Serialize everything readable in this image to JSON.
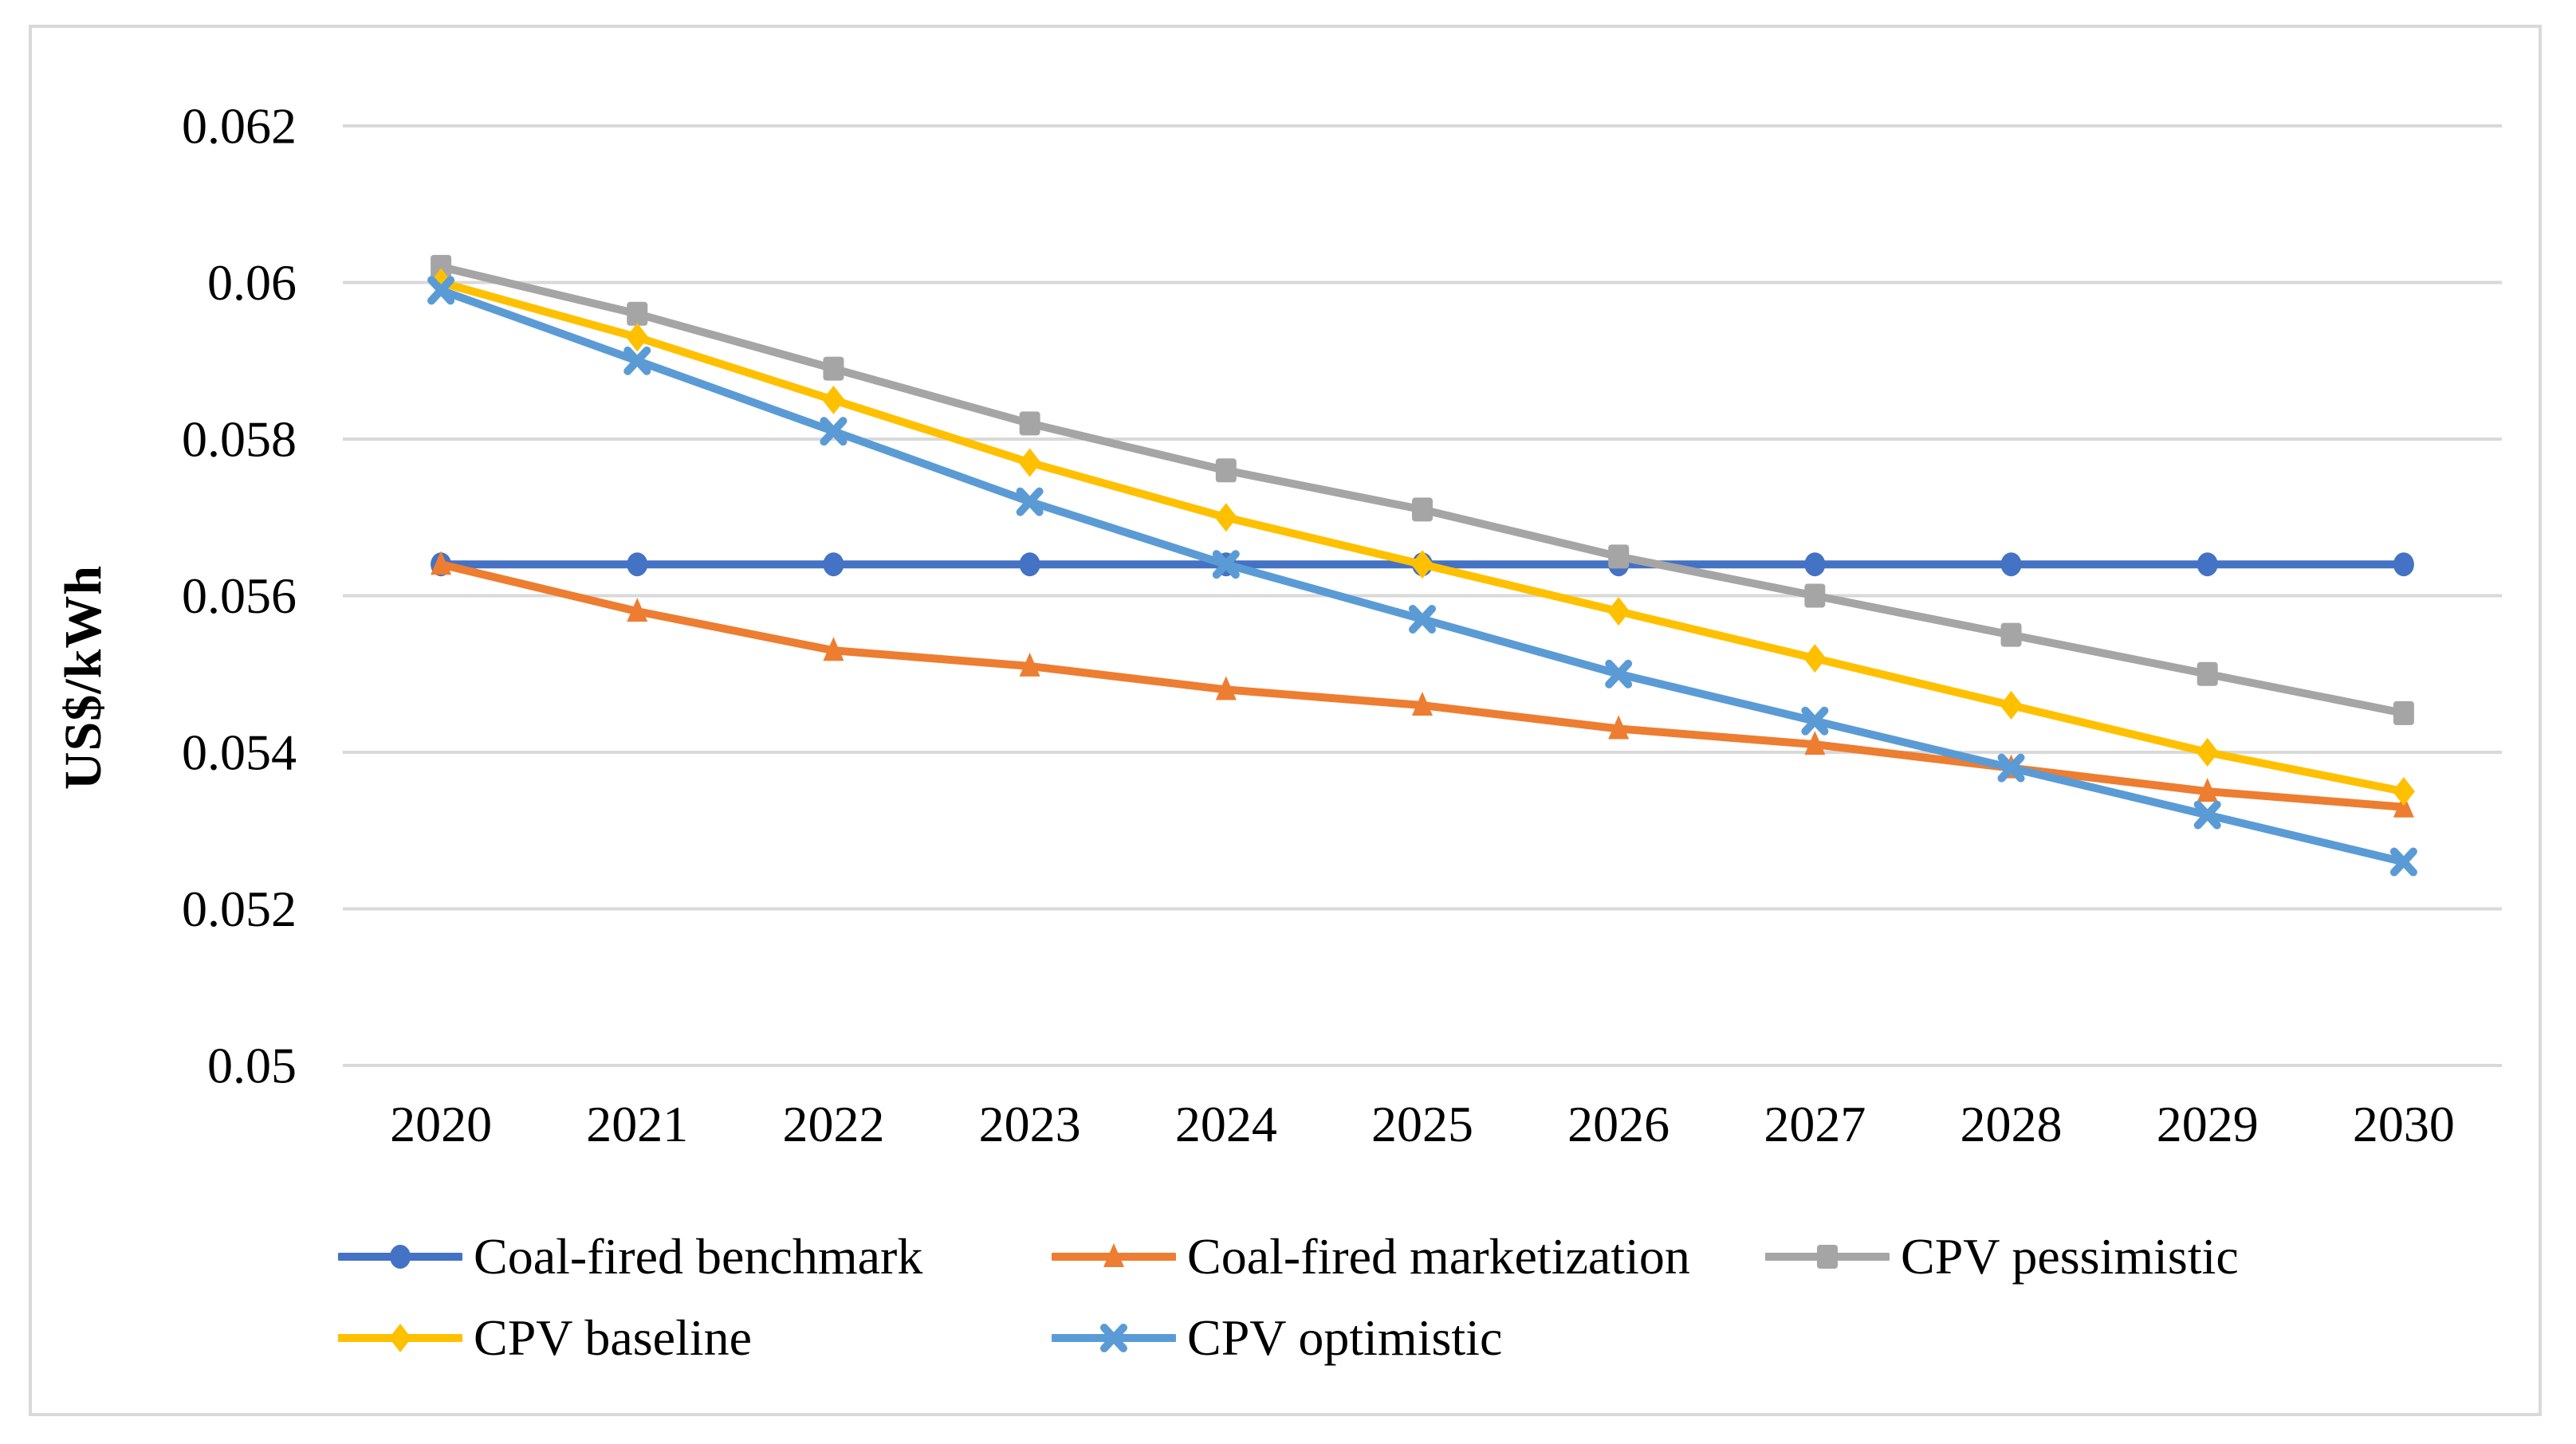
{
  "figure": {
    "background_color": "#ffffff",
    "border_color": "#d9d9d9",
    "gridline_color": "#d9d9d9",
    "text_color": "#000000"
  },
  "chart_data": {
    "type": "line",
    "title": "",
    "xlabel": "",
    "ylabel": "US$/kWh",
    "x": [
      "2020",
      "2021",
      "2022",
      "2023",
      "2024",
      "2025",
      "2026",
      "2027",
      "2028",
      "2029",
      "2030"
    ],
    "ylim": [
      0.05,
      0.062
    ],
    "y_ticks": [
      0.062,
      0.06,
      0.058,
      0.056,
      0.054,
      0.052,
      0.05
    ],
    "y_tick_labels": [
      "0.062",
      "0.06",
      "0.058",
      "0.056",
      "0.054",
      "0.052",
      "0.05"
    ],
    "grid": "horizontal",
    "legend_position": "bottom",
    "series": [
      {
        "id": "coal-fired-benchmark",
        "name": "Coal-fired benchmark",
        "color": "#4472C4",
        "marker": "circle",
        "values": [
          0.0564,
          0.0564,
          0.0564,
          0.0564,
          0.0564,
          0.0564,
          0.0564,
          0.0564,
          0.0564,
          0.0564,
          0.0564
        ]
      },
      {
        "id": "coal-fired-marketization",
        "name": "Coal-fired marketization",
        "color": "#ED7D31",
        "marker": "triangle",
        "values": [
          0.0564,
          0.0558,
          0.0553,
          0.0551,
          0.0548,
          0.0546,
          0.0543,
          0.0541,
          0.0538,
          0.0535,
          0.0533
        ]
      },
      {
        "id": "cpv-pessimistic",
        "name": "CPV pessimistic",
        "color": "#A5A5A5",
        "marker": "square",
        "values": [
          0.0602,
          0.0596,
          0.0589,
          0.0582,
          0.0576,
          0.0571,
          0.0565,
          0.056,
          0.0555,
          0.055,
          0.0545
        ]
      },
      {
        "id": "cpv-baseline",
        "name": "CPV baseline",
        "color": "#FFC000",
        "marker": "diamond",
        "values": [
          0.06,
          0.0593,
          0.0585,
          0.0577,
          0.057,
          0.0564,
          0.0558,
          0.0552,
          0.0546,
          0.054,
          0.0535
        ]
      },
      {
        "id": "cpv-optimistic",
        "name": "CPV optimistic",
        "color": "#5B9BD5",
        "marker": "x",
        "values": [
          0.0599,
          0.059,
          0.0581,
          0.0572,
          0.0564,
          0.0557,
          0.055,
          0.0544,
          0.0538,
          0.0532,
          0.0526
        ]
      }
    ]
  }
}
